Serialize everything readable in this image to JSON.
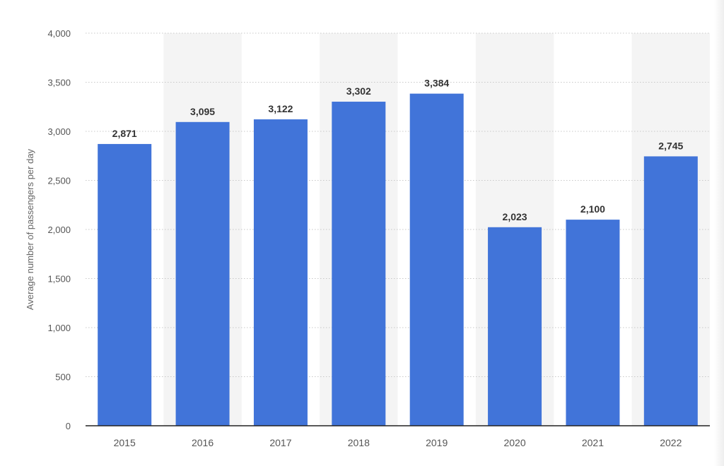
{
  "chart_data": {
    "type": "bar",
    "title": "",
    "xlabel": "",
    "ylabel": "Average number of passengers per day",
    "categories": [
      "2015",
      "2016",
      "2017",
      "2018",
      "2019",
      "2020",
      "2021",
      "2022"
    ],
    "values": [
      2871,
      3095,
      3122,
      3302,
      3384,
      2023,
      2100,
      2745
    ],
    "value_labels": [
      "2,871",
      "3,095",
      "3,122",
      "3,302",
      "3,384",
      "2,023",
      "2,100",
      "2,745"
    ],
    "ylim": [
      0,
      4000
    ],
    "yticks": [
      0,
      500,
      1000,
      1500,
      2000,
      2500,
      3000,
      3500,
      4000
    ],
    "ytick_labels": [
      "0",
      "500",
      "1,000",
      "1,500",
      "2,000",
      "2,500",
      "3,000",
      "3,500",
      "4,000"
    ],
    "grid": true,
    "legend": "none",
    "colors": {
      "bar": "#4174d9",
      "value_label": "#333333",
      "tick_label": "#555555",
      "axis_title": "#666666",
      "gridline": "#c8c8c8",
      "band": "#f4f4f4",
      "baseline": "#222222"
    }
  }
}
